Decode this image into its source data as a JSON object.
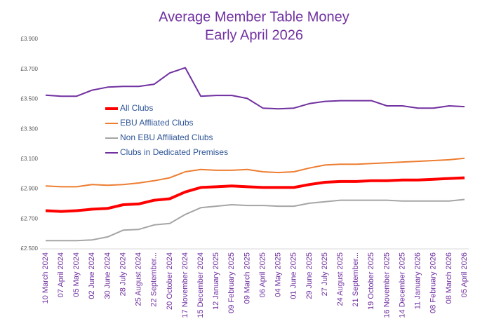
{
  "chart_data": {
    "type": "line",
    "title": "Average Member Table Money",
    "subtitle": "Early April 2026",
    "categories": [
      "10 March 2024",
      "07 April 2024",
      "05 May 2024",
      "02 June 2024",
      "30 June 2024",
      "28 July 2024",
      "25 August 2024",
      "22 September...",
      "20 October 2024",
      "17 November 2024",
      "15 December 2024",
      "12 January 2025",
      "09 February 2025",
      "09 March 2025",
      "06 April 2025",
      "04 May 2025",
      "01 June 2025",
      "29 June 2025",
      "27 July 2025",
      "24 August 2025",
      "21 September...",
      "19 October 2025",
      "16 November 2025",
      "14 December 2025",
      "11 January 2026",
      "08 February 2026",
      "08 March 2026",
      "05 April 2026"
    ],
    "series": [
      {
        "name": "All Clubs",
        "color": "#ff0000",
        "width": 4,
        "values": [
          2.755,
          2.75,
          2.755,
          2.765,
          2.77,
          2.795,
          2.8,
          2.825,
          2.835,
          2.88,
          2.91,
          2.915,
          2.92,
          2.915,
          2.91,
          2.91,
          2.91,
          2.93,
          2.945,
          2.95,
          2.95,
          2.955,
          2.955,
          2.96,
          2.96,
          2.965,
          2.97,
          2.975
        ]
      },
      {
        "name": "EBU Affliated Clubs",
        "color": "#ed7d31",
        "width": 2,
        "values": [
          2.92,
          2.915,
          2.915,
          2.93,
          2.925,
          2.93,
          2.94,
          2.955,
          2.975,
          3.015,
          3.03,
          3.025,
          3.025,
          3.03,
          3.015,
          3.01,
          3.015,
          3.04,
          3.06,
          3.065,
          3.065,
          3.07,
          3.075,
          3.08,
          3.085,
          3.09,
          3.095,
          3.105
        ]
      },
      {
        "name": "Non EBU Affiliated Clubs",
        "color": "#a5a5a5",
        "width": 2,
        "values": [
          2.555,
          2.555,
          2.555,
          2.56,
          2.58,
          2.625,
          2.63,
          2.66,
          2.67,
          2.73,
          2.775,
          2.785,
          2.795,
          2.79,
          2.79,
          2.785,
          2.785,
          2.805,
          2.815,
          2.825,
          2.825,
          2.825,
          2.825,
          2.82,
          2.82,
          2.82,
          2.82,
          2.83
        ]
      },
      {
        "name": "Clubs in Dedicated Premises",
        "color": "#7030a0",
        "width": 2,
        "values": [
          3.527,
          3.52,
          3.52,
          3.56,
          3.58,
          3.585,
          3.585,
          3.6,
          3.675,
          3.71,
          3.52,
          3.525,
          3.525,
          3.505,
          3.44,
          3.435,
          3.44,
          3.47,
          3.485,
          3.49,
          3.49,
          3.49,
          3.455,
          3.455,
          3.44,
          3.44,
          3.455,
          3.45
        ]
      }
    ],
    "ylim": [
      2.5,
      3.9
    ],
    "yticks": [
      {
        "value": 2.5,
        "label": "£2.500"
      },
      {
        "value": 2.7,
        "label": "£2.700"
      },
      {
        "value": 2.9,
        "label": "£2.900"
      },
      {
        "value": 3.1,
        "label": "£3.100"
      },
      {
        "value": 3.3,
        "label": "£3.300"
      },
      {
        "value": 3.5,
        "label": "£3.500"
      },
      {
        "value": 3.7,
        "label": "£3.700"
      },
      {
        "value": 3.9,
        "label": "£3.900"
      }
    ],
    "grid": false
  }
}
